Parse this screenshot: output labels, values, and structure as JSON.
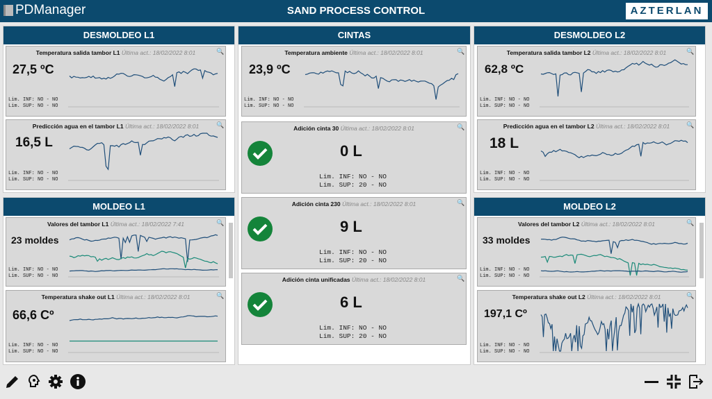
{
  "header": {
    "app_name": "PDManager",
    "title": "SAND PROCESS CONTROL",
    "brand": "AZTERLAN"
  },
  "panels": {
    "desmoldeo_l1": "DESMOLDEO L1",
    "cintas": "CINTAS",
    "desmoldeo_l2": "DESMOLDEO L2",
    "moldeo_l1": "MOLDEO L1",
    "moldeo_l2": "MOLDEO L2"
  },
  "update_label": "Última act.:",
  "cards": {
    "d1a": {
      "title": "Temperatura salida tambor L1",
      "updated": "18/02/2022 8:01",
      "value": "27,5 ºC",
      "inf": "Lim. INF: NO - NO",
      "sup": "Lim. SUP: NO - NO"
    },
    "d1b": {
      "title": "Predicción agua en el tambor L1",
      "updated": "18/02/2022 8:01",
      "value": "16,5 L",
      "inf": "Lim. INF: NO - NO",
      "sup": "Lim. SUP: NO - NO"
    },
    "c1": {
      "title": "Temperatura ambiente",
      "updated": "18/02/2022 8:01",
      "value": "23,9 ºC",
      "inf": "Lim. INF: NO - NO",
      "sup": "Lim. SUP: NO - NO"
    },
    "c2": {
      "title": "Adición cinta 30",
      "updated": "18/02/2022 8:01",
      "value": "0 L",
      "inf": "Lim. INF: NO - NO",
      "sup": "Lim. SUP: 20 - NO"
    },
    "c3": {
      "title": "Adición cinta 230",
      "updated": "18/02/2022 8:01",
      "value": "9 L",
      "inf": "Lim. INF: NO - NO",
      "sup": "Lim. SUP: 20 - NO"
    },
    "c4": {
      "title": "Adición cinta unificadas",
      "updated": "18/02/2022 8:01",
      "value": "6 L",
      "inf": "Lim. INF: NO - NO",
      "sup": "Lim. SUP: 20 - NO"
    },
    "d2a": {
      "title": "Temperatura salida tambor L2",
      "updated": "18/02/2022 8:01",
      "value": "62,8 ºC",
      "inf": "Lim. INF: NO - NO",
      "sup": "Lim. SUP: NO - NO"
    },
    "d2b": {
      "title": "Predicción agua en el tambor L2",
      "updated": "18/02/2022 8:01",
      "value": "18 L",
      "inf": "Lim. INF: NO - NO",
      "sup": "Lim. SUP: NO - NO"
    },
    "m1a": {
      "title": "Valores del tambor L1",
      "updated": "18/02/2022 7:41",
      "value": "23 moldes",
      "inf": "Lim. INF: NO - NO",
      "sup": "Lim. SUP: NO - NO"
    },
    "m1b": {
      "title": "Temperatura shake out L1",
      "updated": "18/02/2022 8:01",
      "value": "66,6 Cº",
      "inf": "Lim. INF: NO - NO",
      "sup": "Lim. SUP: NO - NO"
    },
    "m2a": {
      "title": "Valores del tambor L2",
      "updated": "18/02/2022 8:01",
      "value": "33 moldes",
      "inf": "Lim. INF: NO - NO",
      "sup": "Lim. SUP: NO - NO"
    },
    "m2b": {
      "title": "Temperatura shake out L2",
      "updated": "18/02/2022 8:01",
      "value": "197,1 Cº",
      "inf": "Lim. INF: NO - NO",
      "sup": "Lim. SUP: NO - NO"
    }
  },
  "colors": {
    "header": "#0c4a6e",
    "line": "#1f4e79",
    "teal": "#1a8a78",
    "ok": "#14843a"
  },
  "icons": [
    "pencil-icon",
    "brain-icon",
    "gear-icon",
    "info-icon",
    "minimize-icon",
    "collapse-icon",
    "exit-icon"
  ]
}
